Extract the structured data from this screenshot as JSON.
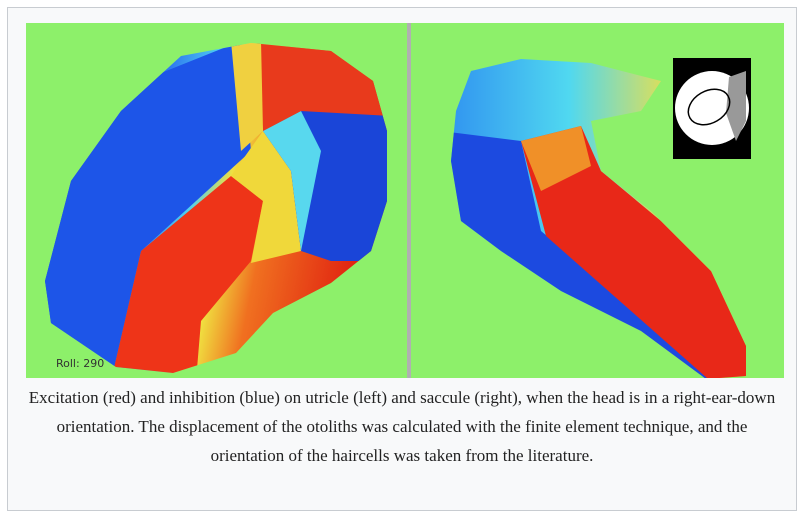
{
  "figure": {
    "image": {
      "label": "Roll: 290"
    },
    "caption": "Excitation (red) and inhibition (blue) on utricle (left) and saccule (right), when the head is in a right-ear-down orientation. The displacement of the otoliths was calculated with the finite element technique, and the orientation of the haircells was taken from the literature."
  }
}
